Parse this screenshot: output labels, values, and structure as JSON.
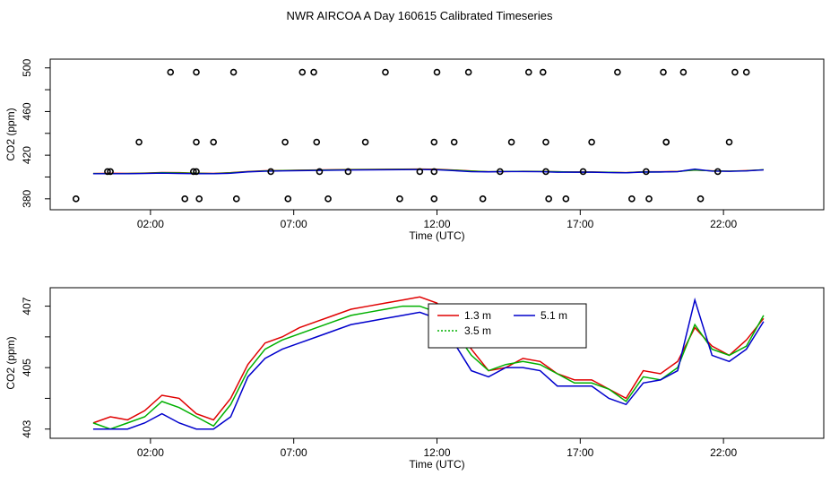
{
  "title": "NWR AIRCOA A  Day 160615  Calibrated Timeseries",
  "chart_data": [
    {
      "type": "scatter+line",
      "name": "flags-panel",
      "xlabel": "Time (UTC)",
      "ylabel": "CO2 (ppm)",
      "xlim": [
        -1.5,
        25.5
      ],
      "ylim": [
        370,
        508
      ],
      "xticks": [
        2,
        7,
        12,
        17,
        22
      ],
      "xtick_labels": [
        "02:00",
        "07:00",
        "12:00",
        "17:00",
        "22:00"
      ],
      "yticks": [
        380,
        420,
        460,
        500
      ],
      "ytick_labels": [
        "380",
        "420",
        "460",
        "500"
      ],
      "yminor_ticks": [
        400,
        440,
        480
      ],
      "points_x": [
        -0.6,
        0.5,
        0.6,
        1.6,
        2.7,
        3.2,
        3.5,
        3.6,
        3.7,
        3.6,
        3.6,
        4.2,
        4.9,
        5.0,
        6.2,
        6.7,
        6.8,
        7.3,
        7.7,
        7.8,
        7.9,
        8.2,
        8.9,
        9.5,
        10.2,
        10.7,
        11.4,
        11.9,
        11.9,
        11.9,
        12.0,
        12.6,
        13.1,
        13.6,
        14.2,
        14.6,
        15.2,
        15.7,
        15.8,
        15.8,
        15.9,
        16.5,
        17.1,
        17.4,
        18.3,
        18.8,
        19.3,
        19.4,
        20.0,
        19.9,
        20.0,
        20.6,
        21.2,
        21.8,
        22.2,
        22.4,
        22.8
      ],
      "points_y": [
        380,
        405,
        405,
        432,
        496,
        380,
        405,
        405,
        380,
        432,
        496,
        432,
        496,
        380,
        405,
        432,
        380,
        496,
        496,
        432,
        405,
        380,
        405,
        432,
        496,
        380,
        405,
        380,
        405,
        432,
        496,
        432,
        496,
        380,
        405,
        432,
        496,
        496,
        432,
        405,
        380,
        380,
        405,
        432,
        496,
        380,
        405,
        380,
        432,
        496,
        432,
        496,
        380,
        405,
        432,
        496,
        496
      ],
      "series": [
        {
          "name": "1.3 m",
          "color": "#e00000"
        },
        {
          "name": "3.5 m",
          "color": "#00b000"
        },
        {
          "name": "5.1 m",
          "color": "#0000cc"
        }
      ]
    },
    {
      "type": "line",
      "name": "timeseries-panel",
      "xlabel": "Time (UTC)",
      "ylabel": "CO2 (ppm)",
      "xlim": [
        -1.5,
        25.5
      ],
      "ylim": [
        402.7,
        407.6
      ],
      "xticks": [
        2,
        7,
        12,
        17,
        22
      ],
      "xtick_labels": [
        "02:00",
        "07:00",
        "12:00",
        "17:00",
        "22:00"
      ],
      "yticks": [
        403,
        405,
        407
      ],
      "ytick_labels": [
        "403",
        "405",
        "407"
      ],
      "yminor_ticks": [
        404,
        406
      ],
      "x": [
        0.0,
        0.6,
        1.2,
        1.8,
        2.4,
        3.0,
        3.6,
        4.2,
        4.8,
        5.4,
        6.0,
        6.6,
        7.2,
        7.8,
        8.4,
        9.0,
        9.6,
        10.2,
        10.8,
        11.4,
        12.0,
        12.6,
        13.2,
        13.8,
        14.4,
        15.0,
        15.6,
        16.2,
        16.8,
        17.4,
        18.0,
        18.6,
        19.2,
        19.8,
        20.4,
        21.0,
        21.6,
        22.2,
        22.8,
        23.4
      ],
      "series": [
        {
          "name": "1.3 m",
          "color": "#e00000",
          "values": [
            403.2,
            403.4,
            403.3,
            403.6,
            404.1,
            404.0,
            403.5,
            403.3,
            404.0,
            405.1,
            405.8,
            406.0,
            406.3,
            406.5,
            406.7,
            406.9,
            407.0,
            407.1,
            407.2,
            407.3,
            407.1,
            406.4,
            405.6,
            404.9,
            405.0,
            405.3,
            405.2,
            404.8,
            404.6,
            404.6,
            404.3,
            404.0,
            404.9,
            404.8,
            405.2,
            406.3,
            405.7,
            405.4,
            405.9,
            406.6
          ]
        },
        {
          "name": "3.5 m",
          "color": "#00b000",
          "values": [
            403.2,
            403.0,
            403.2,
            403.4,
            403.9,
            403.7,
            403.4,
            403.1,
            403.8,
            404.9,
            405.6,
            405.9,
            406.1,
            406.3,
            406.5,
            406.7,
            406.8,
            406.9,
            407.0,
            407.0,
            406.8,
            406.2,
            405.4,
            404.9,
            405.1,
            405.2,
            405.1,
            404.8,
            404.5,
            404.5,
            404.3,
            403.9,
            404.7,
            404.6,
            405.0,
            406.4,
            405.6,
            405.4,
            405.7,
            406.7
          ]
        },
        {
          "name": "5.1 m",
          "color": "#0000cc",
          "values": [
            403.0,
            403.0,
            403.0,
            403.2,
            403.5,
            403.2,
            403.0,
            403.0,
            403.4,
            404.7,
            405.3,
            405.6,
            405.8,
            406.0,
            406.2,
            406.4,
            406.5,
            406.6,
            406.7,
            406.8,
            406.6,
            405.8,
            404.9,
            404.7,
            405.0,
            405.0,
            404.9,
            404.4,
            404.4,
            404.4,
            404.0,
            403.8,
            404.5,
            404.6,
            404.9,
            407.2,
            405.4,
            405.2,
            405.6,
            406.5
          ]
        }
      ]
    }
  ]
}
